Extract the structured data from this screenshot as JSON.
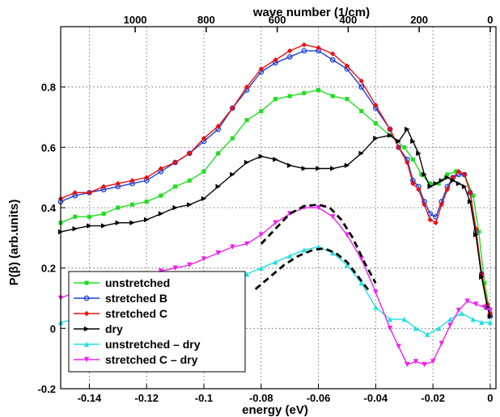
{
  "chart_data": {
    "type": "line",
    "xlabel": "energy (eV)",
    "ylabel": "P(β) (arb.units)",
    "top_xlabel": "wave number (1/cm)",
    "xlim": [
      -0.15,
      0.002
    ],
    "ylim": [
      -0.2,
      1.0
    ],
    "x_ticks": [
      "-0.14",
      "-0.12",
      "-0.1",
      "-0.08",
      "-0.06",
      "-0.04",
      "-0.02",
      "0"
    ],
    "y_ticks": [
      "-0.2",
      "0",
      "0.2",
      "0.4",
      "0.6",
      "0.8"
    ],
    "top_ticks": [
      "1000",
      "800",
      "600",
      "400",
      "200",
      "0"
    ],
    "grid": true,
    "legend_position": "bottom-left",
    "series": [
      {
        "name": "unstretched",
        "color": "#22dd22",
        "marker": "square",
        "points": [
          [
            -0.15,
            0.35
          ],
          [
            -0.145,
            0.37
          ],
          [
            -0.14,
            0.37
          ],
          [
            -0.135,
            0.38
          ],
          [
            -0.13,
            0.4
          ],
          [
            -0.125,
            0.41
          ],
          [
            -0.12,
            0.42
          ],
          [
            -0.115,
            0.44
          ],
          [
            -0.11,
            0.47
          ],
          [
            -0.105,
            0.49
          ],
          [
            -0.1,
            0.52
          ],
          [
            -0.095,
            0.58
          ],
          [
            -0.09,
            0.63
          ],
          [
            -0.085,
            0.69
          ],
          [
            -0.08,
            0.72
          ],
          [
            -0.075,
            0.76
          ],
          [
            -0.07,
            0.77
          ],
          [
            -0.065,
            0.78
          ],
          [
            -0.06,
            0.79
          ],
          [
            -0.055,
            0.77
          ],
          [
            -0.05,
            0.76
          ],
          [
            -0.045,
            0.72
          ],
          [
            -0.04,
            0.68
          ],
          [
            -0.035,
            0.64
          ],
          [
            -0.03,
            0.6
          ],
          [
            -0.027,
            0.56
          ],
          [
            -0.024,
            0.51
          ],
          [
            -0.021,
            0.48
          ],
          [
            -0.018,
            0.48
          ],
          [
            -0.015,
            0.51
          ],
          [
            -0.012,
            0.52
          ],
          [
            -0.009,
            0.51
          ],
          [
            -0.006,
            0.44
          ],
          [
            -0.004,
            0.32
          ],
          [
            -0.002,
            0.15
          ],
          [
            0,
            0.05
          ]
        ]
      },
      {
        "name": "stretched B",
        "color": "#1f3fd6",
        "marker": "circle",
        "points": [
          [
            -0.15,
            0.42
          ],
          [
            -0.145,
            0.44
          ],
          [
            -0.14,
            0.45
          ],
          [
            -0.135,
            0.46
          ],
          [
            -0.13,
            0.47
          ],
          [
            -0.125,
            0.48
          ],
          [
            -0.12,
            0.49
          ],
          [
            -0.115,
            0.52
          ],
          [
            -0.11,
            0.55
          ],
          [
            -0.105,
            0.58
          ],
          [
            -0.1,
            0.62
          ],
          [
            -0.095,
            0.66
          ],
          [
            -0.09,
            0.73
          ],
          [
            -0.085,
            0.79
          ],
          [
            -0.08,
            0.85
          ],
          [
            -0.075,
            0.88
          ],
          [
            -0.07,
            0.9
          ],
          [
            -0.065,
            0.92
          ],
          [
            -0.06,
            0.92
          ],
          [
            -0.055,
            0.89
          ],
          [
            -0.05,
            0.86
          ],
          [
            -0.045,
            0.8
          ],
          [
            -0.04,
            0.73
          ],
          [
            -0.035,
            0.66
          ],
          [
            -0.032,
            0.6
          ],
          [
            -0.029,
            0.56
          ],
          [
            -0.027,
            0.49
          ],
          [
            -0.025,
            0.47
          ],
          [
            -0.023,
            0.42
          ],
          [
            -0.021,
            0.38
          ],
          [
            -0.019,
            0.37
          ],
          [
            -0.017,
            0.42
          ],
          [
            -0.015,
            0.47
          ],
          [
            -0.013,
            0.5
          ],
          [
            -0.011,
            0.51
          ],
          [
            -0.009,
            0.51
          ],
          [
            -0.007,
            0.45
          ],
          [
            -0.005,
            0.32
          ],
          [
            -0.003,
            0.18
          ],
          [
            -0.001,
            0.07
          ],
          [
            0,
            0.04
          ]
        ]
      },
      {
        "name": "stretched C",
        "color": "#e81010",
        "marker": "diamond",
        "points": [
          [
            -0.15,
            0.43
          ],
          [
            -0.145,
            0.45
          ],
          [
            -0.14,
            0.45
          ],
          [
            -0.135,
            0.47
          ],
          [
            -0.13,
            0.48
          ],
          [
            -0.125,
            0.49
          ],
          [
            -0.12,
            0.5
          ],
          [
            -0.115,
            0.53
          ],
          [
            -0.11,
            0.55
          ],
          [
            -0.105,
            0.58
          ],
          [
            -0.1,
            0.63
          ],
          [
            -0.095,
            0.67
          ],
          [
            -0.09,
            0.73
          ],
          [
            -0.085,
            0.8
          ],
          [
            -0.08,
            0.86
          ],
          [
            -0.075,
            0.89
          ],
          [
            -0.07,
            0.92
          ],
          [
            -0.065,
            0.94
          ],
          [
            -0.06,
            0.93
          ],
          [
            -0.055,
            0.91
          ],
          [
            -0.05,
            0.87
          ],
          [
            -0.045,
            0.82
          ],
          [
            -0.04,
            0.74
          ],
          [
            -0.035,
            0.66
          ],
          [
            -0.032,
            0.6
          ],
          [
            -0.029,
            0.55
          ],
          [
            -0.027,
            0.48
          ],
          [
            -0.025,
            0.46
          ],
          [
            -0.023,
            0.41
          ],
          [
            -0.021,
            0.36
          ],
          [
            -0.019,
            0.35
          ],
          [
            -0.017,
            0.41
          ],
          [
            -0.015,
            0.46
          ],
          [
            -0.013,
            0.5
          ],
          [
            -0.011,
            0.52
          ],
          [
            -0.009,
            0.51
          ],
          [
            -0.007,
            0.45
          ],
          [
            -0.005,
            0.33
          ],
          [
            -0.003,
            0.18
          ],
          [
            -0.001,
            0.08
          ],
          [
            0,
            0.05
          ]
        ]
      },
      {
        "name": "dry",
        "color": "#000000",
        "marker": "triangle-right",
        "points": [
          [
            -0.15,
            0.32
          ],
          [
            -0.145,
            0.33
          ],
          [
            -0.14,
            0.34
          ],
          [
            -0.135,
            0.34
          ],
          [
            -0.13,
            0.35
          ],
          [
            -0.125,
            0.35
          ],
          [
            -0.12,
            0.36
          ],
          [
            -0.115,
            0.38
          ],
          [
            -0.11,
            0.4
          ],
          [
            -0.105,
            0.41
          ],
          [
            -0.1,
            0.43
          ],
          [
            -0.095,
            0.47
          ],
          [
            -0.09,
            0.51
          ],
          [
            -0.085,
            0.55
          ],
          [
            -0.08,
            0.57
          ],
          [
            -0.075,
            0.56
          ],
          [
            -0.07,
            0.54
          ],
          [
            -0.065,
            0.53
          ],
          [
            -0.06,
            0.53
          ],
          [
            -0.055,
            0.53
          ],
          [
            -0.05,
            0.54
          ],
          [
            -0.045,
            0.58
          ],
          [
            -0.04,
            0.63
          ],
          [
            -0.035,
            0.64
          ],
          [
            -0.032,
            0.62
          ],
          [
            -0.029,
            0.66
          ],
          [
            -0.027,
            0.62
          ],
          [
            -0.025,
            0.58
          ],
          [
            -0.023,
            0.51
          ],
          [
            -0.021,
            0.47
          ],
          [
            -0.019,
            0.48
          ],
          [
            -0.017,
            0.49
          ],
          [
            -0.015,
            0.5
          ],
          [
            -0.013,
            0.49
          ],
          [
            -0.011,
            0.48
          ],
          [
            -0.009,
            0.47
          ],
          [
            -0.007,
            0.42
          ],
          [
            -0.005,
            0.31
          ],
          [
            -0.003,
            0.17
          ],
          [
            -0.001,
            0.07
          ],
          [
            0,
            0.04
          ]
        ]
      },
      {
        "name": "unstretched – dry",
        "color": "#22e0e0",
        "marker": "triangle-up",
        "points": [
          [
            -0.15,
            0.02
          ],
          [
            -0.145,
            0.03
          ],
          [
            -0.14,
            0.03
          ],
          [
            -0.135,
            0.04
          ],
          [
            -0.13,
            0.05
          ],
          [
            -0.125,
            0.06
          ],
          [
            -0.12,
            0.07
          ],
          [
            -0.115,
            0.08
          ],
          [
            -0.11,
            0.1
          ],
          [
            -0.105,
            0.12
          ],
          [
            -0.1,
            0.14
          ],
          [
            -0.095,
            0.16
          ],
          [
            -0.09,
            0.17
          ],
          [
            -0.085,
            0.18
          ],
          [
            -0.08,
            0.2
          ],
          [
            -0.075,
            0.22
          ],
          [
            -0.07,
            0.24
          ],
          [
            -0.065,
            0.26
          ],
          [
            -0.06,
            0.27
          ],
          [
            -0.055,
            0.25
          ],
          [
            -0.05,
            0.21
          ],
          [
            -0.045,
            0.15
          ],
          [
            -0.04,
            0.07
          ],
          [
            -0.035,
            0.03
          ],
          [
            -0.03,
            0.03
          ],
          [
            -0.026,
            0.0
          ],
          [
            -0.022,
            -0.02
          ],
          [
            -0.018,
            0.0
          ],
          [
            -0.014,
            0.03
          ],
          [
            -0.01,
            0.05
          ],
          [
            -0.006,
            0.03
          ],
          [
            -0.003,
            0.02
          ],
          [
            0,
            0.02
          ]
        ]
      },
      {
        "name": "stretched C – dry",
        "color": "#ee22ee",
        "marker": "triangle-down",
        "points": [
          [
            -0.15,
            0.1
          ],
          [
            -0.145,
            0.12
          ],
          [
            -0.14,
            0.13
          ],
          [
            -0.135,
            0.14
          ],
          [
            -0.13,
            0.15
          ],
          [
            -0.125,
            0.17
          ],
          [
            -0.12,
            0.18
          ],
          [
            -0.115,
            0.19
          ],
          [
            -0.11,
            0.2
          ],
          [
            -0.105,
            0.21
          ],
          [
            -0.1,
            0.23
          ],
          [
            -0.095,
            0.25
          ],
          [
            -0.09,
            0.27
          ],
          [
            -0.085,
            0.28
          ],
          [
            -0.08,
            0.31
          ],
          [
            -0.075,
            0.35
          ],
          [
            -0.07,
            0.38
          ],
          [
            -0.065,
            0.4
          ],
          [
            -0.06,
            0.4
          ],
          [
            -0.055,
            0.37
          ],
          [
            -0.05,
            0.31
          ],
          [
            -0.045,
            0.23
          ],
          [
            -0.04,
            0.12
          ],
          [
            -0.035,
            0.0
          ],
          [
            -0.032,
            -0.06
          ],
          [
            -0.029,
            -0.12
          ],
          [
            -0.026,
            -0.11
          ],
          [
            -0.023,
            -0.12
          ],
          [
            -0.02,
            -0.11
          ],
          [
            -0.017,
            -0.05
          ],
          [
            -0.014,
            0.01
          ],
          [
            -0.011,
            0.06
          ],
          [
            -0.008,
            0.09
          ],
          [
            -0.005,
            0.08
          ],
          [
            -0.002,
            0.07
          ],
          [
            0,
            0.06
          ]
        ]
      },
      {
        "name": "",
        "color": "#000000",
        "style": "dashed",
        "points": [
          [
            -0.082,
            0.13
          ],
          [
            -0.077,
            0.17
          ],
          [
            -0.072,
            0.21
          ],
          [
            -0.067,
            0.24
          ],
          [
            -0.062,
            0.26
          ],
          [
            -0.058,
            0.265
          ],
          [
            -0.054,
            0.25
          ],
          [
            -0.05,
            0.22
          ],
          [
            -0.046,
            0.17
          ],
          [
            -0.042,
            0.12
          ]
        ]
      },
      {
        "name": "",
        "color": "#000000",
        "style": "dashed",
        "points": [
          [
            -0.08,
            0.28
          ],
          [
            -0.075,
            0.33
          ],
          [
            -0.07,
            0.38
          ],
          [
            -0.065,
            0.405
          ],
          [
            -0.06,
            0.41
          ],
          [
            -0.056,
            0.4
          ],
          [
            -0.052,
            0.36
          ],
          [
            -0.048,
            0.3
          ],
          [
            -0.044,
            0.22
          ],
          [
            -0.04,
            0.15
          ]
        ]
      }
    ]
  }
}
